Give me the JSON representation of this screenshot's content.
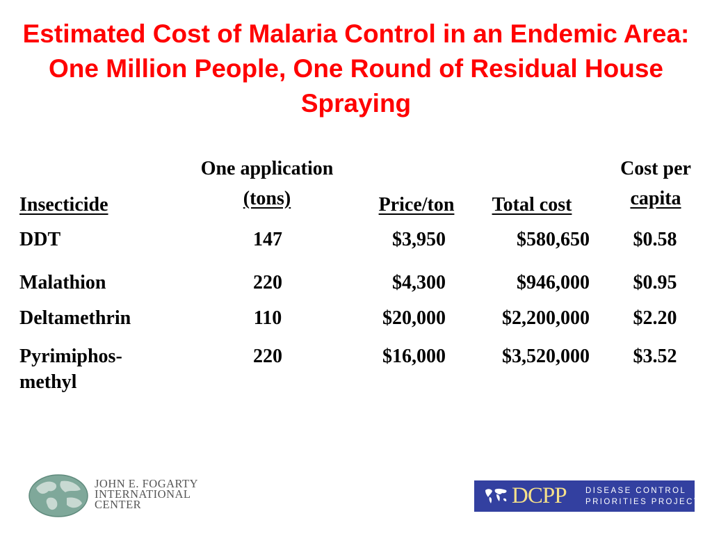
{
  "title": "Estimated Cost of Malaria Control in an Endemic Area:  One Million People, One Round of Residual House Spraying",
  "table": {
    "headers": {
      "insecticide": "Insecticide",
      "application_line1": "One application",
      "application_line2": "(tons)",
      "price": "Price/ton",
      "total": "Total cost",
      "capita_line1": "Cost per",
      "capita_line2": "capita"
    },
    "rows": [
      {
        "insecticide": "DDT",
        "tons": "147",
        "price": "$3,950",
        "total": "$580,650",
        "per_capita": "$0.58"
      },
      {
        "insecticide": "Malathion",
        "tons": "220",
        "price": "$4,300",
        "total": "$946,000",
        "per_capita": "$0.95"
      },
      {
        "insecticide": "Deltamethrin",
        "tons": "110",
        "price": "$20,000",
        "total": "$2,200,000",
        "per_capita": "$2.20"
      },
      {
        "insecticide": "Pyrimiphos-",
        "insecticide_line2": "methyl",
        "tons": "220",
        "price": "$16,000",
        "total": "$3,520,000",
        "per_capita": "$3.52"
      }
    ]
  },
  "logos": {
    "fogarty": {
      "line1": "JOHN E. FOGARTY",
      "line2": "INTERNATIONAL",
      "line3": "CENTER",
      "icon": "globe-icon"
    },
    "dcpp": {
      "abbr": "DCPP",
      "line1": "DISEASE CONTROL",
      "line2": "PRIORITIES PROJECT",
      "icon": "world-map-icon",
      "bg_color": "#3340a0",
      "text_color": "#f5e08a"
    }
  },
  "colors": {
    "title": "#ff0000",
    "text": "#000000",
    "background": "#ffffff"
  }
}
